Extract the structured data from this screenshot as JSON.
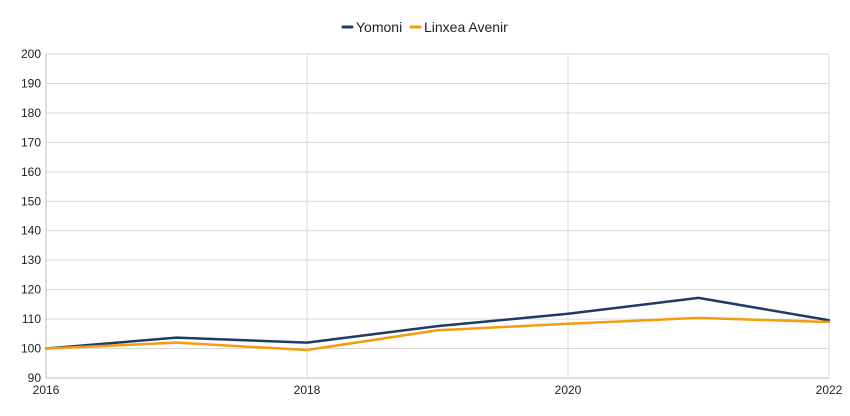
{
  "chart_data": {
    "type": "line",
    "title": "",
    "xlabel": "",
    "ylabel": "",
    "x": [
      2016,
      2017,
      2018,
      2019,
      2020,
      2021,
      2022
    ],
    "x_ticks": [
      "2016",
      "2018",
      "2020",
      "2022"
    ],
    "xlim": [
      2016,
      2022
    ],
    "ylim": [
      90,
      200
    ],
    "y_ticks": [
      90,
      100,
      110,
      120,
      130,
      140,
      150,
      160,
      170,
      180,
      190,
      200
    ],
    "grid": true,
    "legend_position": "top-center",
    "series": [
      {
        "name": "Yomoni",
        "color": "#1f3b63",
        "values": [
          100,
          103.7,
          102,
          107.6,
          111.8,
          117.2,
          109.6
        ]
      },
      {
        "name": "Linxea Avenir",
        "color": "#f59b0f",
        "values": [
          100,
          102,
          99.5,
          106.2,
          108.4,
          110.4,
          109
        ]
      }
    ]
  }
}
